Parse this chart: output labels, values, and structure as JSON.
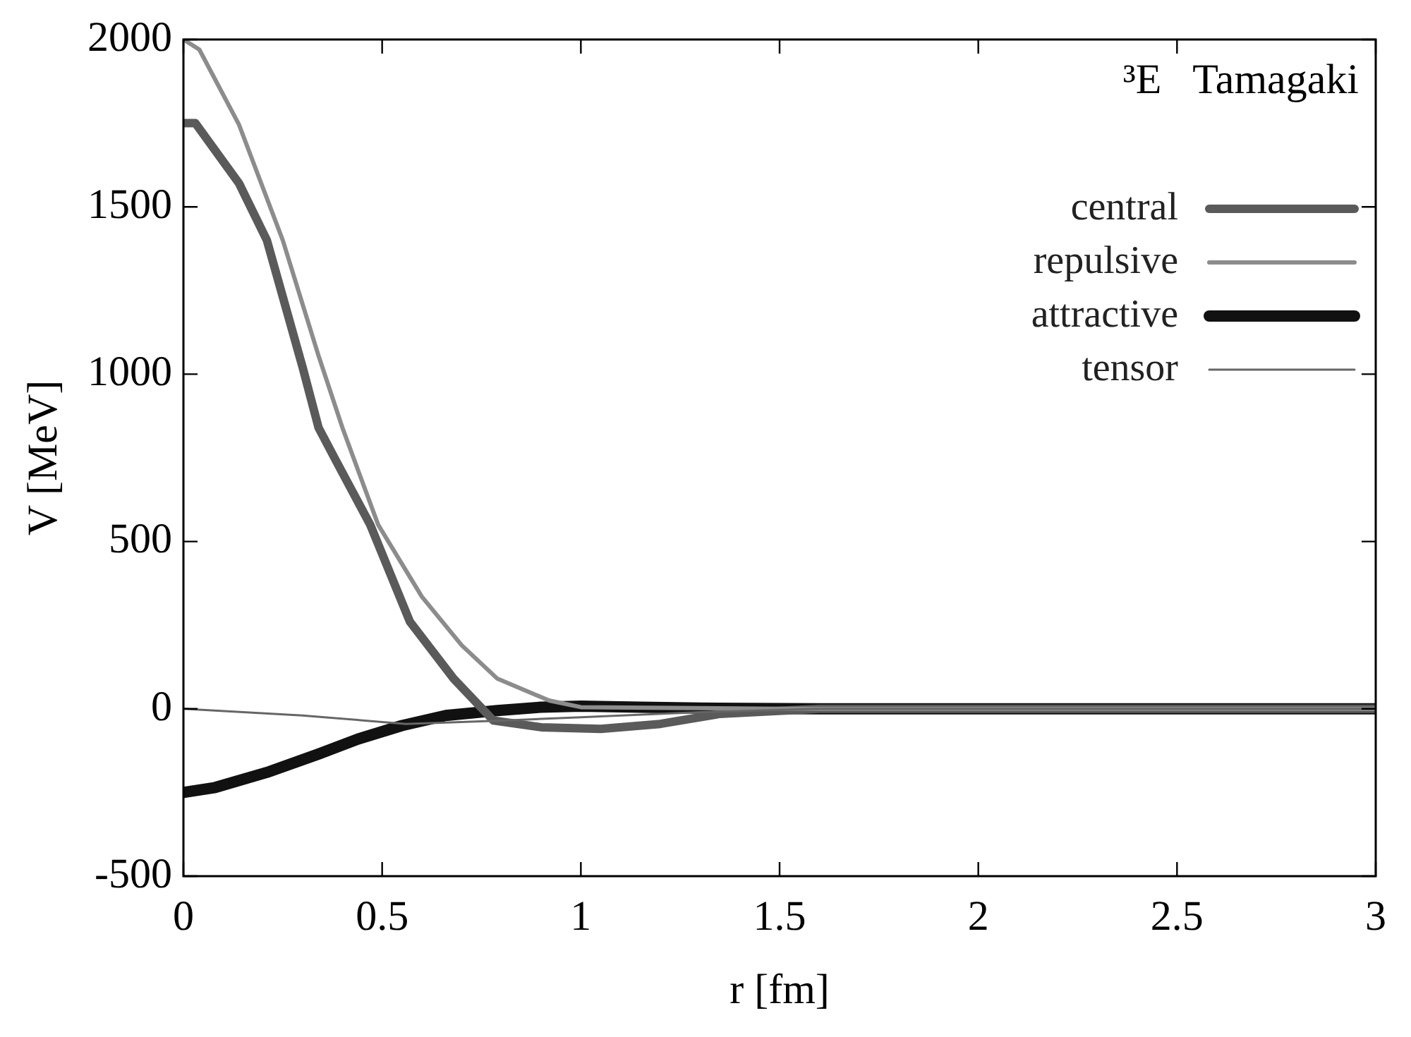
{
  "chart_data": {
    "type": "line",
    "xlabel": "r [fm]",
    "ylabel": "V [MeV]",
    "annotations": [
      "³E   Tamagaki"
    ],
    "xlim": [
      0,
      3
    ],
    "xticks": [
      0,
      0.5,
      1,
      1.5,
      2,
      2.5,
      3
    ],
    "ylim": [
      -500,
      2000
    ],
    "yticks": [
      -500,
      0,
      500,
      1000,
      1500,
      2000
    ],
    "grid": false,
    "legend": "top right",
    "marker": "none",
    "line_style": "solid",
    "series": [
      {
        "name": "central",
        "color": "#5a5a5a",
        "x": [
          0,
          0.03,
          0.14,
          0.21,
          0.3,
          0.34,
          0.38,
          0.47,
          0.57,
          0.68,
          0.78,
          0.9,
          1.05,
          1.2,
          1.35,
          1.6,
          2,
          3
        ],
        "values": [
          1750,
          1750,
          1570,
          1400,
          1020,
          840,
          750,
          550,
          260,
          90,
          -35,
          -55,
          -60,
          -45,
          -15,
          0,
          0,
          0
        ]
      },
      {
        "name": "repulsive",
        "color": "#8c8c8c",
        "x": [
          0,
          0.04,
          0.14,
          0.25,
          0.34,
          0.4,
          0.49,
          0.6,
          0.7,
          0.79,
          0.92,
          1.0,
          1.5,
          3
        ],
        "values": [
          2000,
          1970,
          1745,
          1400,
          1055,
          840,
          550,
          335,
          190,
          90,
          25,
          5,
          0,
          0
        ]
      },
      {
        "name": "attractive",
        "color": "#111111",
        "x": [
          0,
          0.08,
          0.21,
          0.34,
          0.44,
          0.55,
          0.66,
          0.79,
          0.9,
          1.0,
          1.15,
          1.3,
          1.6,
          3
        ],
        "values": [
          -250,
          -235,
          -190,
          -135,
          -90,
          -50,
          -20,
          -5,
          5,
          8,
          5,
          2,
          0,
          0
        ]
      },
      {
        "name": "tensor",
        "color": "#666666",
        "x": [
          0,
          0.3,
          0.56,
          0.8,
          1.0,
          1.3,
          1.6,
          3
        ],
        "values": [
          0,
          -20,
          -45,
          -35,
          -25,
          -10,
          0,
          0
        ]
      }
    ]
  }
}
